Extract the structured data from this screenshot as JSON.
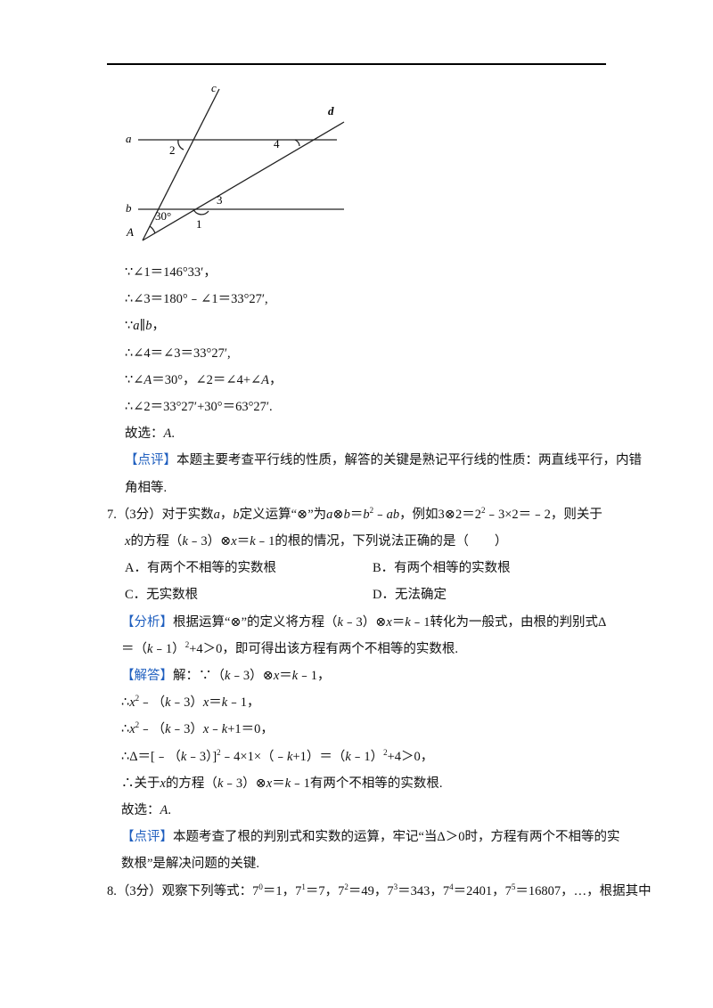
{
  "figure": {
    "labels": {
      "a": "a",
      "b": "b",
      "c": "c",
      "d": "d",
      "one": "1",
      "two": "2",
      "three": "3",
      "four": "4",
      "angle": "30°",
      "A": "A"
    }
  },
  "solution_6": [
    {
      "runs": [
        "∵∠1＝146°33′，"
      ]
    },
    {
      "runs": [
        "∴∠3＝180°﹣∠1＝33°27′,"
      ]
    },
    {
      "runs": [
        "∵",
        {
          "em": "a"
        },
        "∥",
        {
          "em": "b"
        },
        "，"
      ]
    },
    {
      "runs": [
        "∴∠4＝∠3＝33°27′,"
      ]
    },
    {
      "runs": [
        "∵∠",
        {
          "em": "A"
        },
        "＝30°，∠2＝∠4+∠",
        {
          "em": "A"
        },
        "，"
      ]
    },
    {
      "runs": [
        "∴∠2＝33°27′+30°＝63°27′."
      ]
    },
    {
      "runs": [
        "故选：",
        {
          "em": "A"
        },
        "."
      ]
    },
    {
      "runs": [
        {
          "tag": "【点评】"
        },
        "本题主要考查平行线的性质，解答的关键是熟记平行线的性质：两直线平行，内错"
      ]
    },
    {
      "runs": [
        "角相等."
      ]
    }
  ],
  "question_7": {
    "stem": [
      {
        "runs": [
          "7.（3分）对于实数",
          {
            "em": "a"
          },
          "，",
          {
            "em": "b"
          },
          "定义运算“⊗”为",
          {
            "em": "a"
          },
          "⊗",
          {
            "em": "b"
          },
          "＝",
          {
            "em": "b"
          },
          {
            "sup": "2"
          },
          "﹣",
          {
            "em": "ab"
          },
          "，例如3⊗2＝2",
          {
            "sup": "2"
          },
          "﹣3×2＝﹣2，则关于"
        ]
      },
      {
        "runs": [
          {
            "em": "x"
          },
          "的方程（",
          {
            "em": "k"
          },
          "﹣3）⊗",
          {
            "em": "x"
          },
          "＝",
          {
            "em": "k"
          },
          "﹣1的根的情况，下列说法正确的是（　　）"
        ]
      }
    ],
    "options": [
      "A．有两个不相等的实数根",
      "B．有两个相等的实数根",
      "C．无实数根",
      "D．无法确定"
    ],
    "solution": [
      {
        "runs": [
          {
            "tag": "【分析】"
          },
          "根据运算“⊗”的定义将方程（",
          {
            "em": "k"
          },
          "﹣3）⊗",
          {
            "em": "x"
          },
          "＝",
          {
            "em": "k"
          },
          "﹣1转化为一般式，由根的判别式Δ"
        ]
      },
      {
        "runs": [
          "＝（",
          {
            "em": "k"
          },
          "﹣1）",
          {
            "sup": "2"
          },
          "+4＞0，即可得出该方程有两个不相等的实数根."
        ]
      },
      {
        "runs": [
          {
            "tag": "【解答】"
          },
          "解：∵（",
          {
            "em": "k"
          },
          "﹣3）⊗",
          {
            "em": "x"
          },
          "＝",
          {
            "em": "k"
          },
          "﹣1，"
        ]
      },
      {
        "runs": [
          "∴",
          {
            "em": "x"
          },
          {
            "sup": "2"
          },
          "﹣（",
          {
            "em": "k"
          },
          "﹣3）",
          {
            "em": "x"
          },
          "＝",
          {
            "em": "k"
          },
          "﹣1，"
        ]
      },
      {
        "runs": [
          "∴",
          {
            "em": "x"
          },
          {
            "sup": "2"
          },
          "﹣（",
          {
            "em": "k"
          },
          "﹣3）",
          {
            "em": "x"
          },
          "﹣",
          {
            "em": "k"
          },
          "+1＝0，"
        ]
      },
      {
        "runs": [
          "∴Δ＝[﹣（",
          {
            "em": "k"
          },
          "﹣3）]",
          {
            "sup": "2"
          },
          "﹣4×1×（﹣",
          {
            "em": "k"
          },
          "+1）＝（",
          {
            "em": "k"
          },
          "﹣1）",
          {
            "sup": "2"
          },
          "+4＞0，"
        ]
      },
      {
        "runs": [
          "∴关于",
          {
            "em": "x"
          },
          "的方程（",
          {
            "em": "k"
          },
          "﹣3）⊗",
          {
            "em": "x"
          },
          "＝",
          {
            "em": "k"
          },
          "﹣1有两个不相等的实数根."
        ]
      },
      {
        "runs": [
          "故选：",
          {
            "em": "A"
          },
          "."
        ]
      },
      {
        "runs": [
          {
            "tag": "【点评】"
          },
          "本题考查了根的判别式和实数的运算，牢记“当Δ＞0时，方程有两个不相等的实"
        ]
      },
      {
        "runs": [
          "数根”是解决问题的关键."
        ]
      }
    ]
  },
  "question_8": {
    "stem": [
      {
        "runs": [
          "8.（3分）观察下列等式：7",
          {
            "sup": "0"
          },
          "＝1，7",
          {
            "sup": "1"
          },
          "＝7，7",
          {
            "sup": "2"
          },
          "＝49，7",
          {
            "sup": "3"
          },
          "＝343，7",
          {
            "sup": "4"
          },
          "＝2401，7",
          {
            "sup": "5"
          },
          "＝16807，…，根据其中"
        ]
      }
    ]
  }
}
